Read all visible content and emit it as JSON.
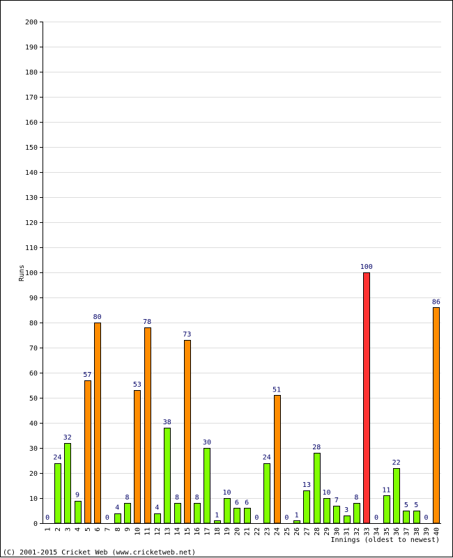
{
  "chart_data": {
    "type": "bar",
    "ylabel": "Runs",
    "xlabel": "Innings (oldest to newest)",
    "ylim": [
      0,
      200
    ],
    "ytick_step": 10,
    "grid": true,
    "categories": [
      "1",
      "2",
      "3",
      "4",
      "5",
      "6",
      "7",
      "8",
      "9",
      "10",
      "11",
      "12",
      "13",
      "14",
      "15",
      "16",
      "17",
      "18",
      "19",
      "20",
      "21",
      "22",
      "23",
      "24",
      "25",
      "26",
      "27",
      "28",
      "29",
      "30",
      "31",
      "32",
      "33",
      "34",
      "35",
      "36",
      "37",
      "38",
      "39",
      "40"
    ],
    "values": [
      0,
      24,
      32,
      9,
      57,
      80,
      0,
      4,
      8,
      53,
      78,
      4,
      38,
      8,
      73,
      8,
      30,
      1,
      10,
      6,
      6,
      0,
      24,
      51,
      0,
      1,
      13,
      28,
      10,
      7,
      3,
      8,
      100,
      0,
      11,
      22,
      5,
      5,
      0,
      86
    ],
    "data_labels": [
      "0",
      "24",
      "32",
      "9",
      "57",
      "80",
      "0",
      "4",
      "8",
      "53",
      "78",
      "4",
      "38",
      "8",
      "73",
      "8",
      "30",
      "1",
      "10",
      "6",
      "6",
      "0",
      "24",
      "51",
      "0",
      "1",
      "13",
      "28",
      "10",
      "7",
      "3",
      "8",
      "100",
      "0",
      "11",
      "22",
      "5",
      "5",
      "0",
      "86"
    ],
    "colors": {
      "under_50": "#80ff00",
      "fifty_plus": "#ff8c00",
      "hundred_plus": "#ff3333",
      "label_text": "#000066",
      "grid": "#dddddd"
    }
  },
  "footer": {
    "copyright": "(C) 2001-2015 Cricket Web (www.cricketweb.net)"
  }
}
